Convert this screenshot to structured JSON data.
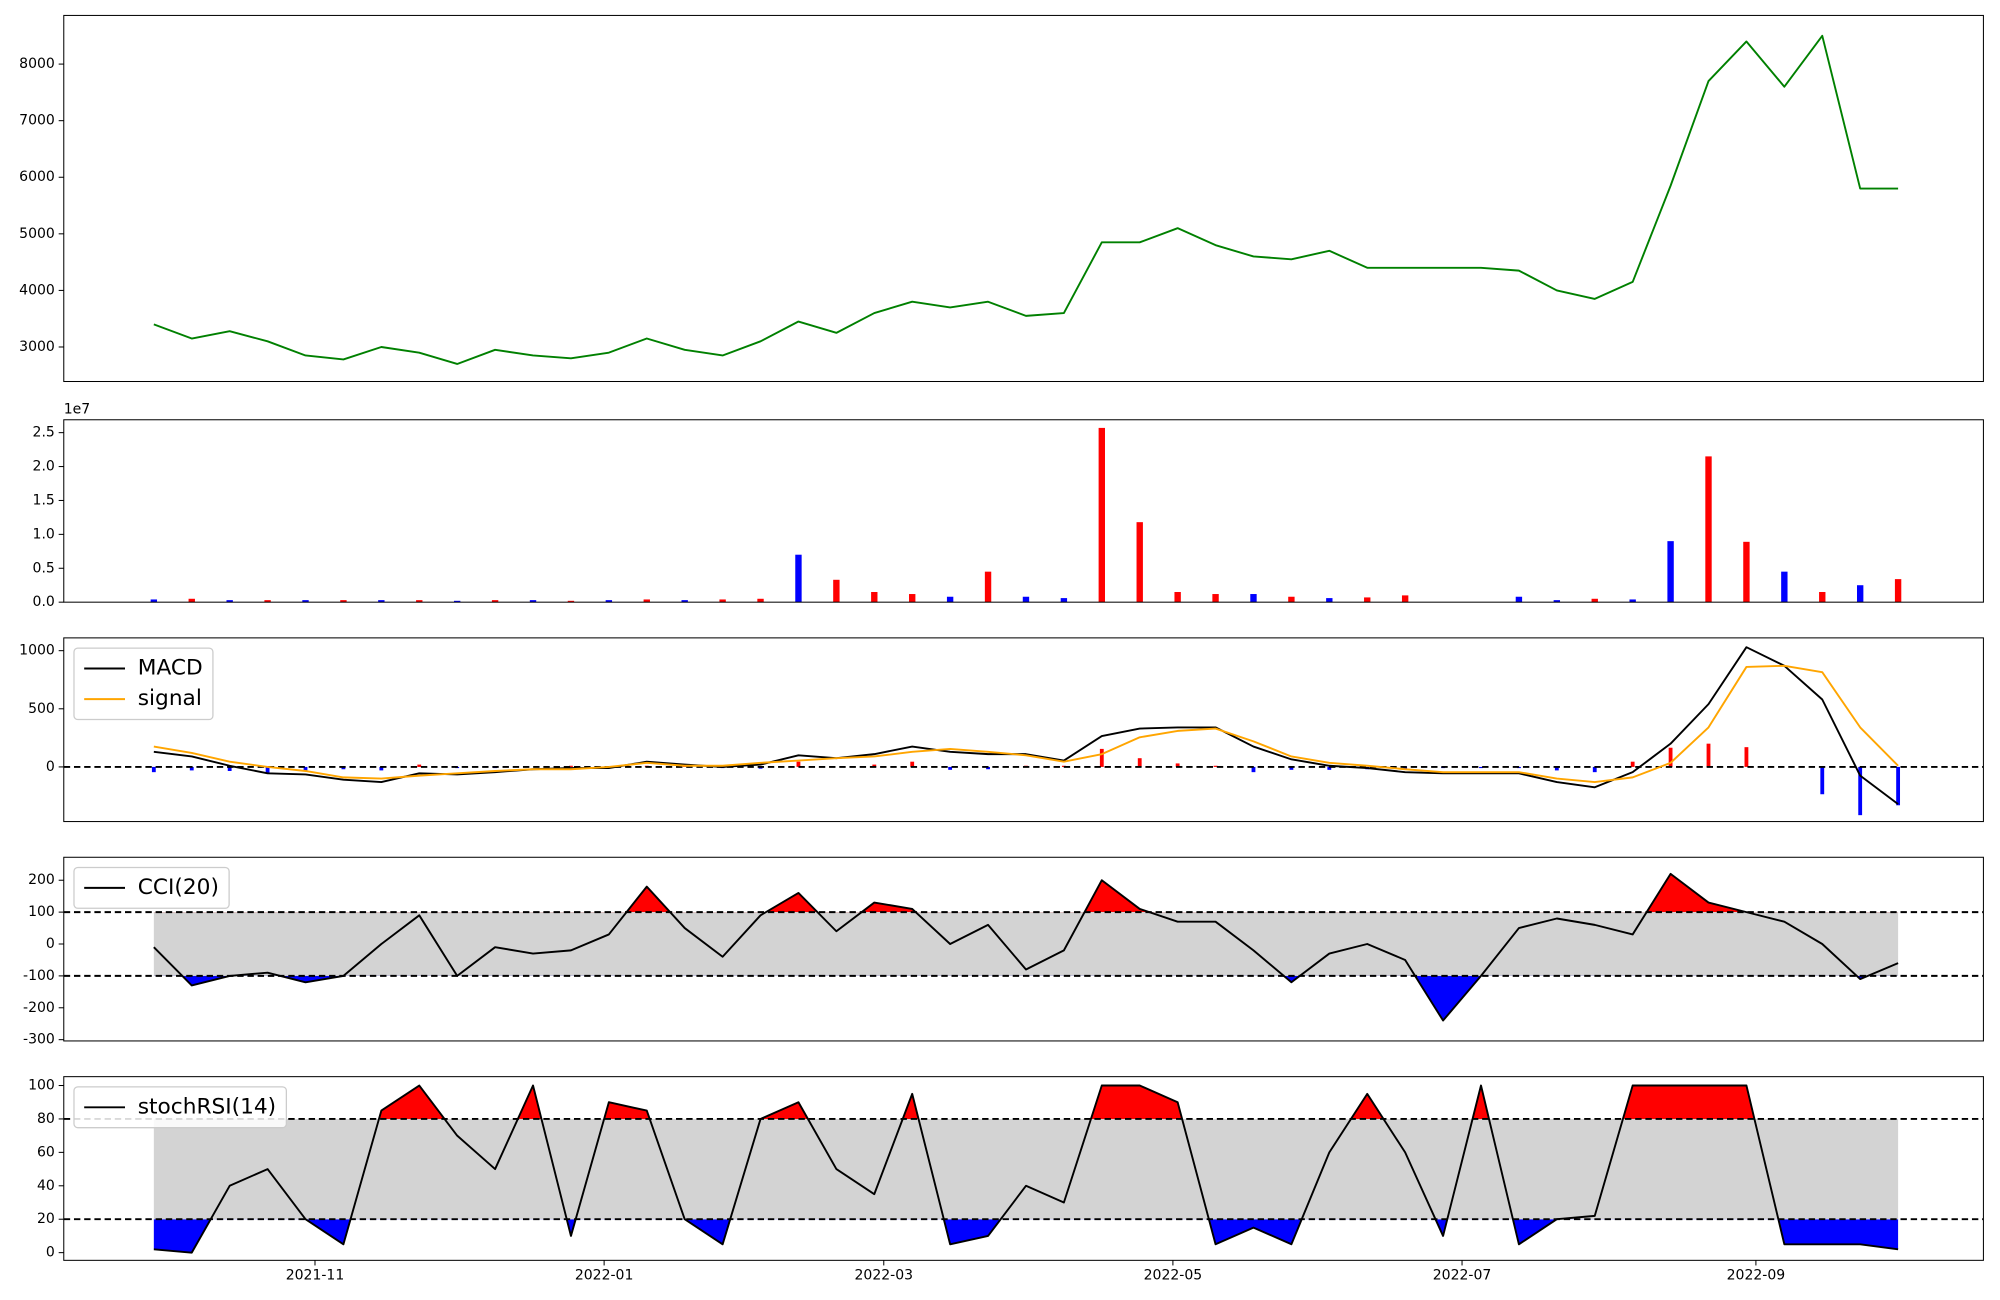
{
  "chart_data": [
    {
      "type": "line",
      "x": [
        -34,
        -26,
        -18,
        -10,
        -2,
        6,
        14,
        22,
        30,
        38,
        46,
        54,
        62,
        70,
        78,
        86,
        94,
        102,
        110,
        118,
        126,
        134,
        142,
        150,
        158,
        166,
        174,
        182,
        190,
        198,
        206,
        214,
        222,
        230,
        238,
        246,
        254,
        262,
        270,
        278,
        286,
        294,
        302,
        310,
        318,
        326,
        334
      ],
      "xlim": [
        -53,
        352
      ],
      "ylim": [
        2390,
        8860
      ],
      "yticks": [
        3000,
        4000,
        5000,
        6000,
        7000,
        8000
      ],
      "series": [
        {
          "color": "green",
          "values": [
            3400,
            3150,
            3280,
            3100,
            2850,
            2780,
            3000,
            2900,
            2700,
            2950,
            2850,
            2800,
            2900,
            3150,
            2950,
            2850,
            3100,
            3450,
            3250,
            3600,
            3800,
            3700,
            3800,
            3550,
            3600,
            4850,
            4850,
            5100,
            4800,
            4600,
            4550,
            4700,
            4400,
            4400,
            4400,
            4400,
            4350,
            4000,
            3850,
            4150,
            5850,
            7700,
            8400,
            7600,
            8500,
            5800,
            5800
          ]
        }
      ]
    },
    {
      "type": "bar",
      "x": [
        -34,
        -26,
        -18,
        -10,
        -2,
        6,
        14,
        22,
        30,
        38,
        46,
        54,
        62,
        70,
        78,
        86,
        94,
        102,
        110,
        118,
        126,
        134,
        142,
        150,
        158,
        166,
        174,
        182,
        190,
        198,
        206,
        214,
        222,
        230,
        238,
        246,
        254,
        262,
        270,
        278,
        286,
        294,
        302,
        310,
        318,
        326,
        334
      ],
      "xlim": [
        -53,
        352
      ],
      "ylim": [
        0,
        26900000
      ],
      "yticks": [
        {
          "value": 0,
          "label": "0.0"
        },
        {
          "value": 5000000,
          "label": "0.5"
        },
        {
          "value": 10000000,
          "label": "1.0"
        },
        {
          "value": 15000000,
          "label": "1.5"
        },
        {
          "value": 20000000,
          "label": "2.0"
        },
        {
          "value": 25000000,
          "label": "2.5"
        }
      ],
      "offset_label": "1e7",
      "values": [
        400000,
        500000,
        300000,
        300000,
        300000,
        300000,
        300000,
        300000,
        200000,
        300000,
        300000,
        200000,
        300000,
        400000,
        300000,
        400000,
        500000,
        7000000,
        3300000,
        1500000,
        1200000,
        800000,
        4500000,
        800000,
        600000,
        25700000,
        11800000,
        1500000,
        1200000,
        1200000,
        800000,
        600000,
        700000,
        1000000,
        0,
        0,
        800000,
        300000,
        500000,
        400000,
        9000000,
        21500000,
        8900000,
        4500000,
        1500000,
        2500000,
        3400000
      ],
      "colors": [
        "blue",
        "red",
        "blue",
        "red",
        "blue",
        "red",
        "blue",
        "red",
        "blue",
        "red",
        "blue",
        "red",
        "blue",
        "red",
        "blue",
        "red",
        "red",
        "blue",
        "red",
        "red",
        "red",
        "blue",
        "red",
        "blue",
        "blue",
        "red",
        "red",
        "red",
        "red",
        "blue",
        "red",
        "blue",
        "red",
        "red",
        "blue",
        "blue",
        "blue",
        "blue",
        "red",
        "blue",
        "blue",
        "red",
        "red",
        "blue",
        "red",
        "blue",
        "red"
      ]
    },
    {
      "type": "line",
      "x": [
        -34,
        -26,
        -18,
        -10,
        -2,
        6,
        14,
        22,
        30,
        38,
        46,
        54,
        62,
        70,
        78,
        86,
        94,
        102,
        110,
        118,
        126,
        134,
        142,
        150,
        158,
        166,
        174,
        182,
        190,
        198,
        206,
        214,
        222,
        230,
        238,
        246,
        254,
        262,
        270,
        278,
        286,
        294,
        302,
        310,
        318,
        326,
        334
      ],
      "xlim": [
        -53,
        352
      ],
      "ylim": [
        -470,
        1110
      ],
      "yticks": [
        0,
        500,
        1000
      ],
      "series": [
        {
          "name": "MACD",
          "color": "black",
          "values": [
            130,
            90,
            10,
            -55,
            -65,
            -110,
            -130,
            -55,
            -65,
            -45,
            -20,
            -10,
            -10,
            45,
            20,
            0,
            20,
            100,
            75,
            110,
            175,
            130,
            110,
            110,
            55,
            265,
            330,
            340,
            340,
            175,
            65,
            10,
            -10,
            -45,
            -55,
            -55,
            -55,
            -130,
            -175,
            -45,
            200,
            540,
            1030,
            870,
            580,
            -75,
            -320
          ]
        },
        {
          "name": "signal",
          "color": "orange",
          "values": [
            175,
            120,
            45,
            0,
            -35,
            -90,
            -100,
            -75,
            -55,
            -35,
            -20,
            -20,
            0,
            35,
            10,
            10,
            35,
            55,
            75,
            90,
            130,
            155,
            130,
            100,
            45,
            110,
            255,
            310,
            330,
            220,
            90,
            35,
            10,
            -20,
            -45,
            -45,
            -45,
            -100,
            -130,
            -90,
            35,
            340,
            860,
            870,
            815,
            340,
            10
          ]
        }
      ],
      "histogram": {
        "up_color": "red",
        "down_color": "blue",
        "values": [
          -45,
          -30,
          -35,
          -55,
          -30,
          -20,
          -30,
          20,
          -10,
          -10,
          0,
          10,
          -10,
          10,
          10,
          -10,
          -15,
          45,
          0,
          20,
          45,
          -25,
          -20,
          10,
          10,
          155,
          75,
          30,
          10,
          -45,
          -25,
          -25,
          -20,
          -25,
          -10,
          -10,
          -10,
          -30,
          -45,
          45,
          165,
          200,
          170,
          0,
          -235,
          -415,
          -330
        ]
      },
      "reference_line": 0,
      "legend": "upper left"
    },
    {
      "type": "line",
      "x": [
        -34,
        -26,
        -18,
        -10,
        -2,
        6,
        14,
        22,
        30,
        38,
        46,
        54,
        62,
        70,
        78,
        86,
        94,
        102,
        110,
        118,
        126,
        134,
        142,
        150,
        158,
        166,
        174,
        182,
        190,
        198,
        206,
        214,
        222,
        230,
        238,
        246,
        254,
        262,
        270,
        278,
        286,
        294,
        302,
        310,
        318,
        326,
        334
      ],
      "xlim": [
        -53,
        352
      ],
      "ylim": [
        -304,
        272
      ],
      "yticks": [
        -300,
        -200,
        -100,
        0,
        100,
        200
      ],
      "series": [
        {
          "name": "CCI(20)",
          "color": "black",
          "values": [
            -10,
            -130,
            -100,
            -90,
            -120,
            -100,
            0,
            90,
            -100,
            -10,
            -30,
            -20,
            30,
            180,
            50,
            -40,
            90,
            160,
            40,
            130,
            110,
            0,
            60,
            -80,
            -20,
            200,
            110,
            70,
            70,
            -20,
            -120,
            -30,
            0,
            -50,
            -240,
            -100,
            50,
            80,
            60,
            30,
            220,
            130,
            100,
            70,
            0,
            -110,
            -60
          ]
        }
      ],
      "band": {
        "upper": 100,
        "lower": -100,
        "color": "lightgray",
        "upper_color": "red",
        "lower_color": "blue"
      },
      "legend": "upper left"
    },
    {
      "type": "line",
      "x": [
        -34,
        -26,
        -18,
        -10,
        -2,
        6,
        14,
        22,
        30,
        38,
        46,
        54,
        62,
        70,
        78,
        86,
        94,
        102,
        110,
        118,
        126,
        134,
        142,
        150,
        158,
        166,
        174,
        182,
        190,
        198,
        206,
        214,
        222,
        230,
        238,
        246,
        254,
        262,
        270,
        278,
        286,
        294,
        302,
        310,
        318,
        326,
        334
      ],
      "xlim": [
        -53,
        352
      ],
      "ylim": [
        -4.6,
        105.3
      ],
      "yticks": [
        0,
        20,
        40,
        60,
        80,
        100
      ],
      "xticks": [
        {
          "value": 0,
          "label": "2021-11"
        },
        {
          "value": 61,
          "label": "2022-01"
        },
        {
          "value": 120,
          "label": "2022-03"
        },
        {
          "value": 181,
          "label": "2022-05"
        },
        {
          "value": 242,
          "label": "2022-07"
        },
        {
          "value": 304,
          "label": "2022-09"
        }
      ],
      "series": [
        {
          "name": "stochRSI(14)",
          "color": "black",
          "values": [
            2,
            0,
            40,
            50,
            20,
            5,
            85,
            100,
            70,
            50,
            100,
            10,
            90,
            85,
            20,
            5,
            80,
            90,
            50,
            35,
            95,
            5,
            10,
            40,
            30,
            100,
            100,
            90,
            5,
            15,
            5,
            60,
            95,
            60,
            10,
            100,
            5,
            20,
            22,
            100,
            100,
            100,
            100,
            5,
            5,
            5,
            2
          ]
        }
      ],
      "band": {
        "upper": 80,
        "lower": 20,
        "color": "lightgray",
        "upper_color": "red",
        "lower_color": "blue"
      },
      "legend": "upper left"
    }
  ]
}
